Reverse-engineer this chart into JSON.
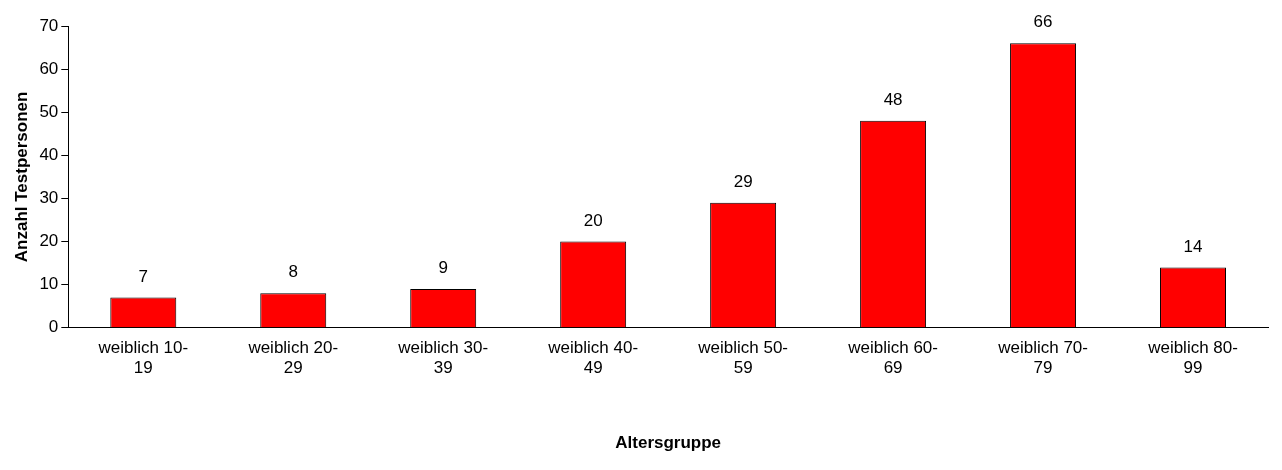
{
  "chart_data": {
    "type": "bar",
    "xlabel": "Altersgruppe",
    "ylabel": "Anzahl Testpersonen",
    "categories": [
      "weiblich 10-19",
      "weiblich 20-29",
      "weiblich 30-39",
      "weiblich 40-49",
      "weiblich 50-59",
      "weiblich 60-69",
      "weiblich 70-79",
      "weiblich 80-99"
    ],
    "values": [
      7,
      8,
      9,
      20,
      29,
      48,
      66,
      14
    ],
    "color": "#ff0000",
    "ylim": [
      0,
      70
    ],
    "yticks": [
      0,
      10,
      20,
      30,
      40,
      50,
      60,
      70
    ],
    "grid": false,
    "legend": false,
    "data_labels": true
  }
}
